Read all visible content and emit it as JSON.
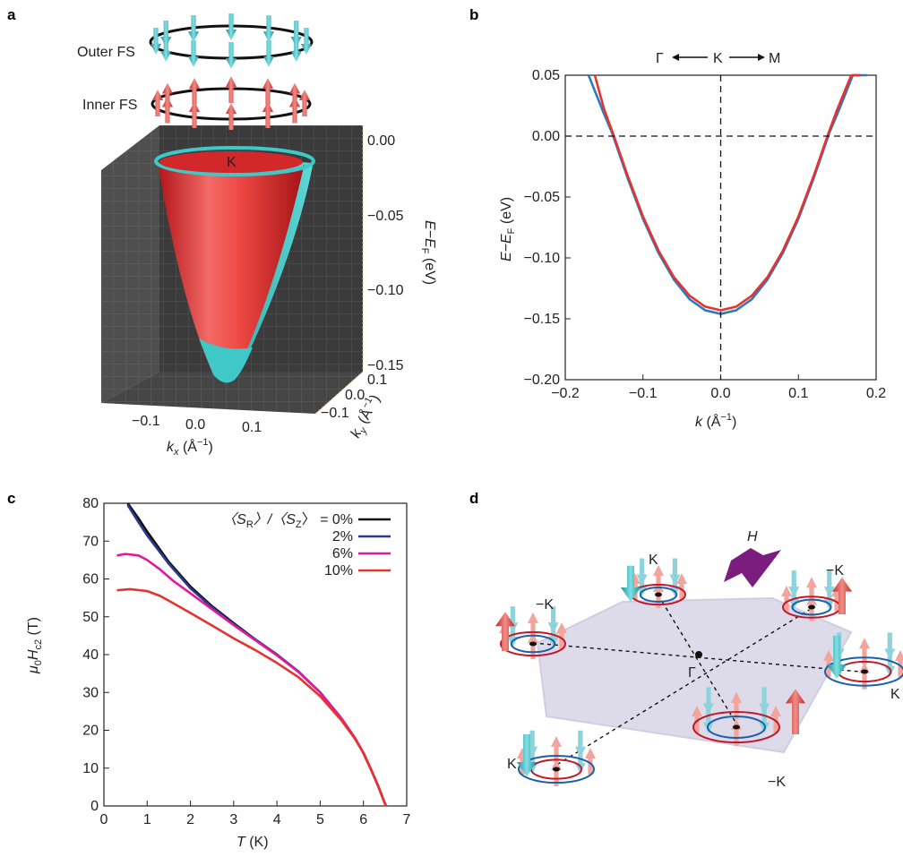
{
  "panels": {
    "a": {
      "letter": "a",
      "outer_fs": "Outer FS",
      "inner_fs": "Inner FS",
      "k_point": "K",
      "z_ticks": [
        "0.00",
        "−0.05",
        "−0.10",
        "−0.15"
      ],
      "z_label": "E−E",
      "z_label_sub": "F",
      "z_label_unit": " (eV)",
      "x_ticks": [
        "−0.1",
        "0.0",
        "0.1"
      ],
      "x_label": "k",
      "x_label_sub": "x",
      "x_label_unit": " (Å",
      "x_label_exp": "−1",
      "x_label_close": ")",
      "y_ticks": [
        "0.1",
        "0.0",
        "−0.1"
      ],
      "y_label": "k",
      "y_label_sub": "y",
      "y_label_unit": " (Å",
      "y_label_exp": "−1",
      "y_label_close": ")",
      "colors": {
        "outer": "#3ec8c8",
        "inner": "#e8322e",
        "box": "#3a3a3a"
      }
    },
    "b": {
      "letter": "b",
      "path_gamma": "Γ",
      "path_k": "K",
      "path_m": "M",
      "x_label": "k",
      "x_label_unit": " (Å",
      "x_label_exp": "−1",
      "x_label_close": ")",
      "y_label": "E−E",
      "y_label_sub": "F",
      "y_label_unit": " (eV)"
    },
    "c": {
      "letter": "c",
      "legend_prefix": "〈S",
      "legend_sub1": "R",
      "legend_mid": "〉/〈S",
      "legend_sub2": "Z",
      "legend_suffix": "〉 = 0%",
      "x_label": "T",
      "x_label_unit": " (K)",
      "y_label_mu": "μ",
      "y_label_sub0": "0",
      "y_label_h": "H",
      "y_label_subc2": "c2",
      "y_label_unit": " (T)"
    },
    "d": {
      "letter": "d",
      "field": "H",
      "gamma": "Γ",
      "k_labels": [
        "K",
        "−K",
        "−K",
        "K",
        "K",
        "−K"
      ]
    }
  },
  "chart_data": [
    {
      "panel": "b",
      "type": "line",
      "xlim": [
        -0.2,
        0.2
      ],
      "ylim": [
        -0.2,
        0.05
      ],
      "x_ticks": [
        "−0.2",
        "−0.1",
        "0.0",
        "0.1",
        "0.2"
      ],
      "y_ticks": [
        "0.05",
        "0.00",
        "−0.05",
        "−0.10",
        "−0.15",
        "−0.20"
      ],
      "grid": false,
      "series": [
        {
          "color": "#2a7bc0",
          "x": [
            -0.17,
            -0.15,
            -0.14,
            -0.12,
            -0.1,
            -0.08,
            -0.06,
            -0.04,
            -0.02,
            0.0,
            0.02,
            0.04,
            0.06,
            0.08,
            0.1,
            0.12,
            0.14,
            0.15,
            0.17,
            0.188
          ],
          "y": [
            0.05,
            0.018,
            0.003,
            -0.034,
            -0.068,
            -0.096,
            -0.118,
            -0.134,
            -0.143,
            -0.146,
            -0.143,
            -0.134,
            -0.118,
            -0.096,
            -0.068,
            -0.034,
            0.003,
            0.018,
            0.05,
            0.05
          ]
        },
        {
          "color": "#e8322e",
          "x": [
            -0.162,
            -0.15,
            -0.139,
            -0.12,
            -0.1,
            -0.08,
            -0.06,
            -0.04,
            -0.02,
            0.0,
            0.02,
            0.04,
            0.06,
            0.08,
            0.1,
            0.12,
            0.139,
            0.15,
            0.168,
            0.18
          ],
          "y": [
            0.05,
            0.022,
            0.003,
            -0.032,
            -0.066,
            -0.094,
            -0.116,
            -0.131,
            -0.14,
            -0.143,
            -0.14,
            -0.131,
            -0.116,
            -0.094,
            -0.066,
            -0.032,
            0.003,
            0.022,
            0.05,
            0.05
          ]
        }
      ],
      "reference_lines": {
        "horizontal_y": 0.0,
        "vertical_x": 0.0
      }
    },
    {
      "panel": "c",
      "type": "line",
      "xlim": [
        0,
        7
      ],
      "ylim": [
        0,
        80
      ],
      "x_ticks": [
        "0",
        "1",
        "2",
        "3",
        "4",
        "5",
        "6",
        "7"
      ],
      "y_ticks": [
        "0",
        "10",
        "20",
        "30",
        "40",
        "50",
        "60",
        "70",
        "80"
      ],
      "grid": false,
      "legend_position": "top-right",
      "series": [
        {
          "name": "0%",
          "color": "#111111",
          "x": [
            0.55,
            0.8,
            1.0,
            1.5,
            2.0,
            2.5,
            3.0,
            3.5,
            4.0,
            4.5,
            5.0,
            5.5,
            5.8,
            6.0,
            6.2,
            6.35,
            6.45,
            6.52
          ],
          "y": [
            80,
            76,
            72.5,
            64.5,
            58,
            52.8,
            48.3,
            44,
            40,
            35.5,
            30,
            23,
            18,
            14,
            9,
            5,
            2,
            0
          ]
        },
        {
          "name": "2%",
          "color": "#2b3a8c",
          "x": [
            0.55,
            0.8,
            1.0,
            1.5,
            2.0,
            2.5,
            3.0,
            3.5,
            4.0,
            4.5,
            5.0,
            5.5,
            5.8,
            6.0,
            6.2,
            6.35,
            6.45,
            6.52
          ],
          "y": [
            79.5,
            75,
            71.5,
            64,
            57.5,
            52.5,
            48,
            44,
            40,
            35.5,
            30,
            23,
            18,
            14,
            9,
            5,
            2,
            0
          ]
        },
        {
          "name": "6%",
          "color": "#e0199e",
          "x": [
            0.3,
            0.5,
            0.8,
            1.0,
            1.3,
            1.6,
            2.0,
            2.5,
            3.0,
            3.5,
            4.0,
            4.5,
            5.0,
            5.5,
            5.8,
            6.0,
            6.2,
            6.35,
            6.45,
            6.52
          ],
          "y": [
            66.2,
            66.6,
            66.2,
            65,
            62.5,
            59.5,
            56.2,
            52,
            47.8,
            43.8,
            39.8,
            35.4,
            30,
            23,
            18,
            14,
            9,
            5,
            2,
            0
          ]
        },
        {
          "name": "10%",
          "color": "#e8322e",
          "x": [
            0.3,
            0.6,
            1.0,
            1.3,
            1.6,
            2.0,
            2.5,
            3.0,
            3.5,
            4.0,
            4.5,
            5.0,
            5.5,
            5.8,
            6.0,
            6.2,
            6.35,
            6.45,
            6.52
          ],
          "y": [
            57,
            57.3,
            56.8,
            55.5,
            53.6,
            51,
            47.7,
            44.3,
            41.2,
            37.8,
            34,
            29,
            22.5,
            17.8,
            14,
            9,
            5,
            2,
            0
          ]
        }
      ]
    }
  ]
}
